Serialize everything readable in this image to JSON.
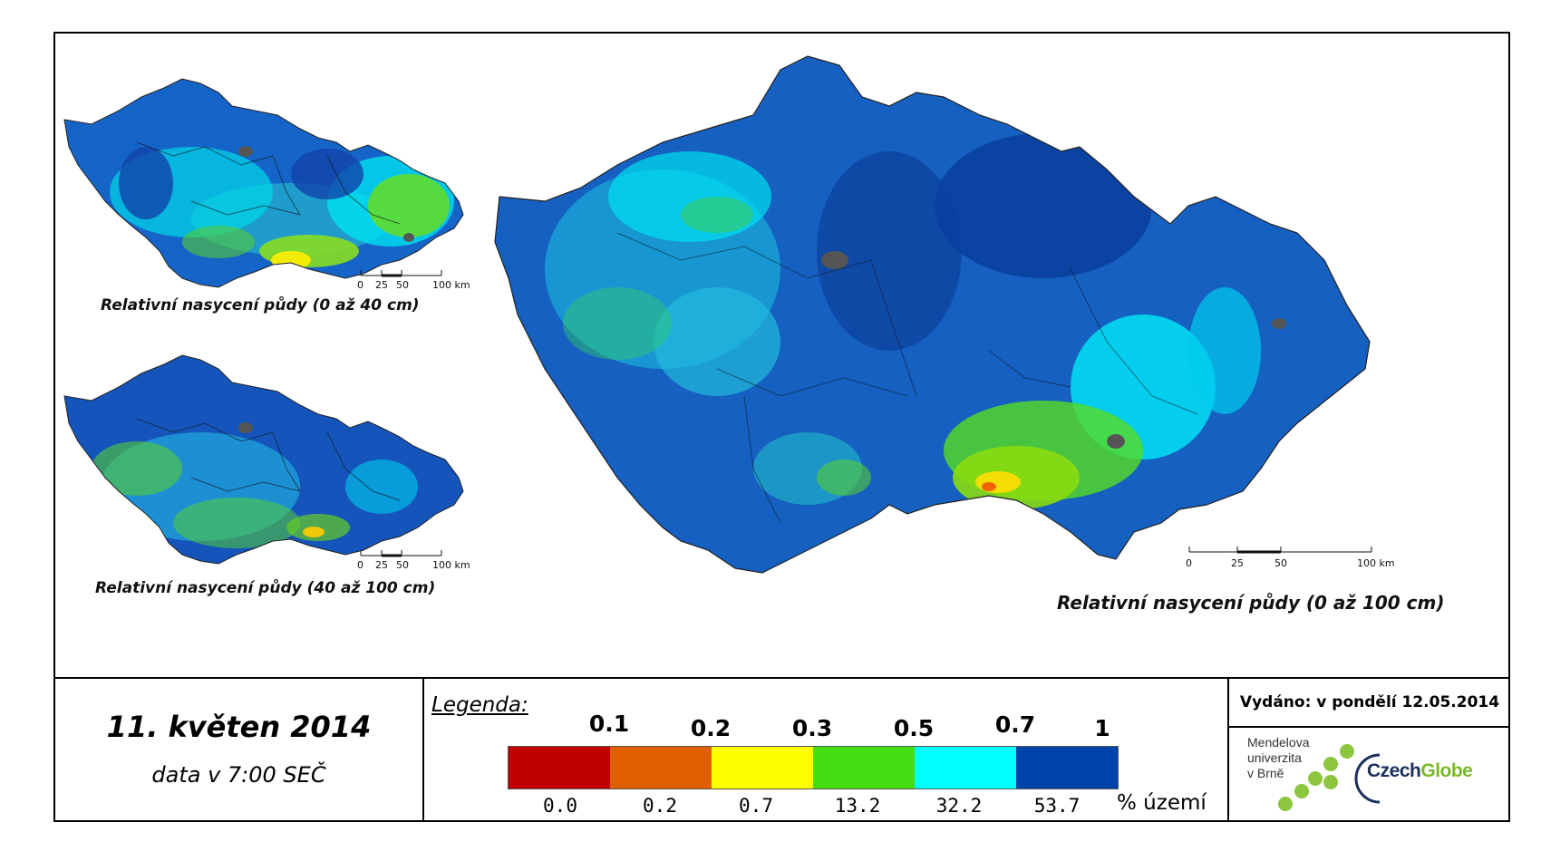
{
  "maps": [
    {
      "id": "small_top",
      "caption": "Relativní nasycení půdy (0 až 40 cm)",
      "scale_labels": [
        "0",
        "25",
        "50",
        "100 km"
      ]
    },
    {
      "id": "small_bottom",
      "caption": "Relativní nasycení půdy (40 až 100 cm)",
      "scale_labels": [
        "0",
        "25",
        "50",
        "100 km"
      ]
    },
    {
      "id": "large",
      "caption": "Relativní nasycení půdy (0 až 100 cm)",
      "scale_labels": [
        "0",
        "25",
        "50",
        "100 km"
      ]
    }
  ],
  "date": {
    "title": "11. květen 2014",
    "subtitle": "data v 7:00 SEČ"
  },
  "legend": {
    "title": "Legenda:",
    "thresholds": [
      "0.1",
      "0.2",
      "0.3",
      "0.5",
      "0.7",
      "1"
    ],
    "colors": [
      "#c00000",
      "#e06000",
      "#ffff00",
      "#44dd11",
      "#00ffff",
      "#0044aa"
    ],
    "percentages": [
      "0.0",
      "0.2",
      "0.7",
      "13.2",
      "32.2",
      "53.7"
    ],
    "unit": "% území"
  },
  "issued": {
    "text": "Vydáno: v pondělí 12.05.2014"
  },
  "logos": {
    "mendel_lines": [
      "Mendelova",
      "univerzita",
      "v Brně"
    ],
    "czechglobe_a": "Czech",
    "czechglobe_b": "Globe"
  }
}
